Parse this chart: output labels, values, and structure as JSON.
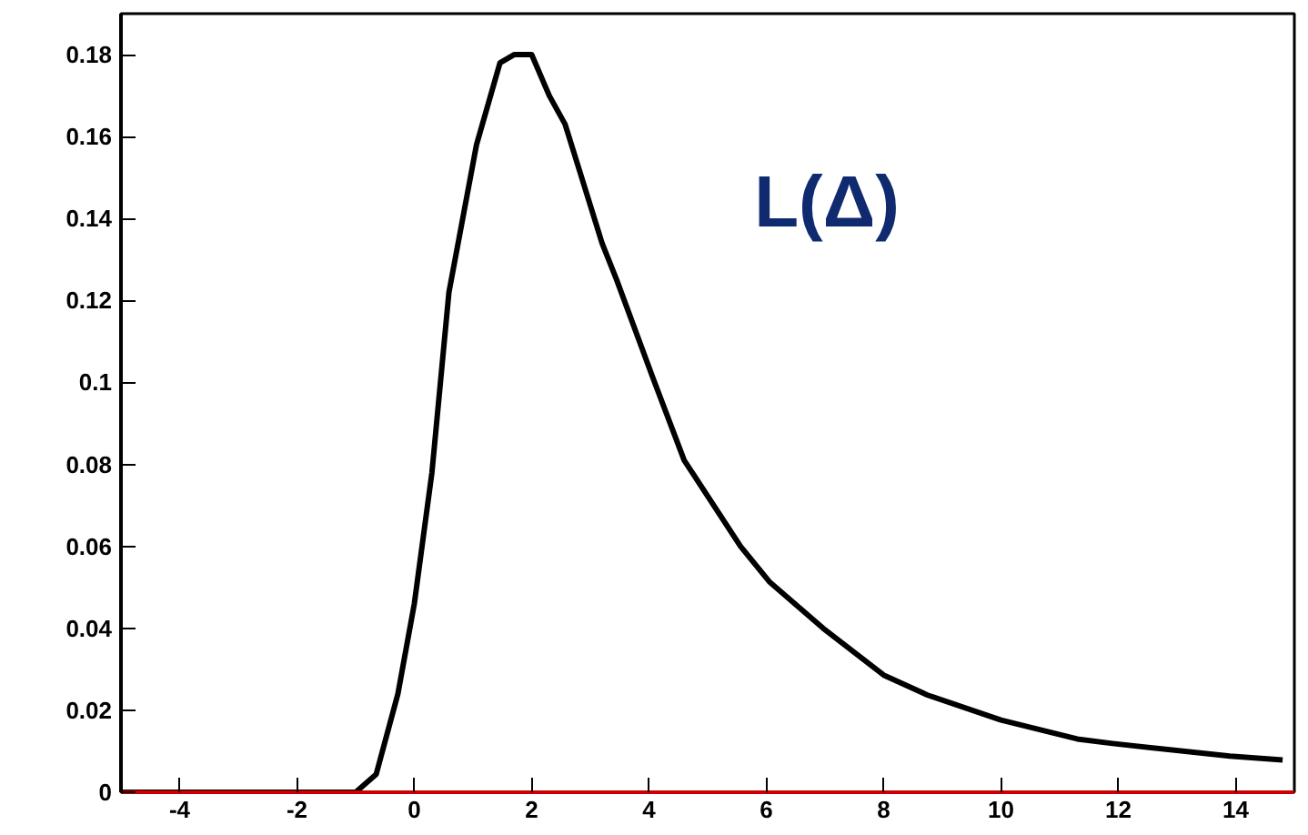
{
  "chart_data": {
    "type": "line",
    "x": [
      -5,
      -2,
      -1,
      -0.65,
      -0.28,
      0,
      0.3,
      0.59,
      1.06,
      1.46,
      1.7,
      2.0,
      2.3,
      2.57,
      3.2,
      3.45,
      4.07,
      4.6,
      5.56,
      6.05,
      6.97,
      8.0,
      8.75,
      10.0,
      11.3,
      11.9,
      13.9,
      14.8
    ],
    "series": [
      {
        "color": "#000000",
        "values": [
          0,
          0,
          0,
          0.0044,
          0.024,
          0.046,
          0.078,
          0.122,
          0.158,
          0.178,
          0.18,
          0.18,
          0.17,
          0.163,
          0.134,
          0.125,
          0.101,
          0.081,
          0.06,
          0.0514,
          0.04,
          0.0286,
          0.0237,
          0.0176,
          0.013,
          0.0119,
          0.0088,
          0.0079
        ]
      }
    ],
    "xlim": [
      -5,
      15
    ],
    "ylim": [
      0,
      0.19
    ],
    "xticks": [
      -4,
      -2,
      0,
      2,
      4,
      6,
      8,
      10,
      12,
      14
    ],
    "yticks": [
      0,
      0.02,
      0.04,
      0.06,
      0.08,
      0.1,
      0.12,
      0.14,
      0.16,
      0.18
    ],
    "annotations": [
      "L(Δ)"
    ],
    "grid": false,
    "marker": "none",
    "line_style": "solid"
  }
}
